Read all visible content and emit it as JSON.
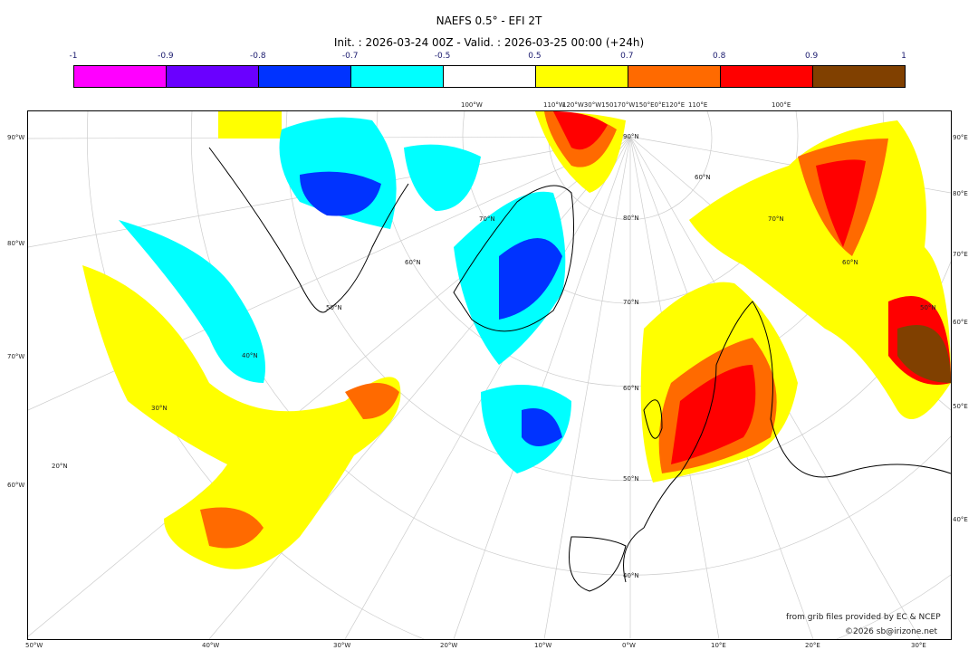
{
  "title": "NAEFS 0.5° - EFI 2T",
  "subtitle": "Init. : 2026-03-24 00Z - Valid. : 2026-03-25 00:00 (+24h)",
  "colorbar": {
    "colors": [
      "#ff00ff",
      "#6a00ff",
      "#0033ff",
      "#00ffff",
      "#ffffff",
      "#ffff00",
      "#ff6a00",
      "#ff0000",
      "#804000"
    ],
    "ticks": [
      "-1",
      "-0.9",
      "-0.8",
      "-0.7",
      "-0.5",
      "0.5",
      "0.7",
      "0.8",
      "0.9",
      "1"
    ]
  },
  "map": {
    "left_labels": [
      "90°W",
      "80°W",
      "70°W",
      "60°W"
    ],
    "right_labels": [
      "90°E",
      "80°E",
      "70°E",
      "60°E",
      "50°E",
      "40°E"
    ],
    "bottom_labels": [
      "50°W",
      "40°W",
      "30°W",
      "20°W",
      "10°W",
      "0°W",
      "10°E",
      "20°E",
      "30°E"
    ],
    "top_labels": [
      "100°W",
      "110°W",
      "120°W30°W150170°W150°E0°E120°E",
      "110°E",
      "100°E"
    ],
    "lat_labels": [
      "90°N",
      "80°N",
      "70°N",
      "60°N",
      "50°N",
      "40°N",
      "70°N",
      "60°N",
      "50°N",
      "40°N",
      "30°N",
      "20°N",
      "60°N",
      "70°N",
      "60°N",
      "50°N"
    ]
  },
  "credits": {
    "source": "from grib files provided by EC & NCEP",
    "copyright": "©2026 sb@irizone.net"
  }
}
